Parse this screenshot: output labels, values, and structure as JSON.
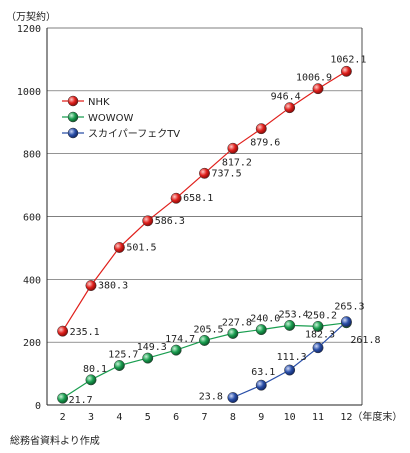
{
  "chart_data": {
    "type": "line",
    "ylabel": "（万契約）",
    "xlabel_suffix": "（年度末）",
    "source": "総務省資料より作成",
    "ylim": [
      0,
      1200
    ],
    "yticks": [
      0,
      200,
      400,
      600,
      800,
      1000,
      1200
    ],
    "x": [
      2,
      3,
      4,
      5,
      6,
      7,
      8,
      9,
      10,
      11,
      12
    ],
    "grid": "horizontal",
    "legend_position": "upper-left",
    "series": [
      {
        "name": "NHK",
        "color": "#e0201c",
        "x": [
          2,
          3,
          4,
          5,
          6,
          7,
          8,
          9,
          10,
          11,
          12
        ],
        "values": [
          235.1,
          380.3,
          501.5,
          586.3,
          658.1,
          737.5,
          817.2,
          879.6,
          946.4,
          1006.9,
          1062.1
        ]
      },
      {
        "name": "WOWOW",
        "color": "#1a9e50",
        "x": [
          2,
          3,
          4,
          5,
          6,
          7,
          8,
          9,
          10,
          11,
          12
        ],
        "values": [
          21.7,
          80.1,
          125.7,
          149.3,
          174.7,
          205.5,
          227.8,
          240.0,
          253.4,
          250.2,
          261.8
        ]
      },
      {
        "name": "スカイパーフェクTV",
        "color": "#2a4fa8",
        "x": [
          8,
          9,
          10,
          11,
          12
        ],
        "values": [
          23.8,
          63.1,
          111.3,
          182.3,
          265.3
        ]
      }
    ]
  }
}
